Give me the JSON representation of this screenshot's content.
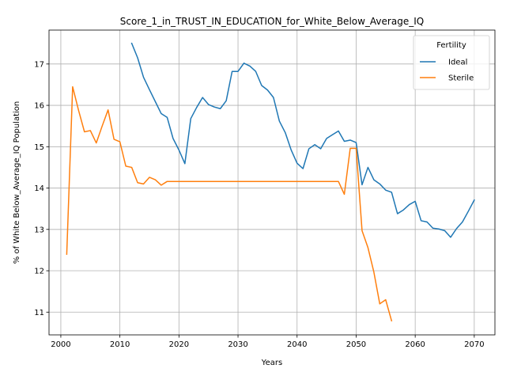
{
  "chart_data": {
    "type": "line",
    "title": "Score_1_in_TRUST_IN_EDUCATION_for_White_Below_Average_IQ",
    "xlabel": "Years",
    "ylabel": "% of White Below_Average_IQ Population",
    "xlim": [
      1998,
      2073.5
    ],
    "ylim": [
      10.45,
      17.82
    ],
    "xticks": [
      2000,
      2010,
      2020,
      2030,
      2040,
      2050,
      2060,
      2070
    ],
    "xtick_labels": [
      "2000",
      "2010",
      "2020",
      "2030",
      "2040",
      "2050",
      "2060",
      "2070"
    ],
    "yticks": [
      11,
      12,
      13,
      14,
      15,
      16,
      17
    ],
    "ytick_labels": [
      "11",
      "12",
      "13",
      "14",
      "15",
      "16",
      "17"
    ],
    "grid": true,
    "legend": {
      "title": "Fertility",
      "placement": "top-right"
    },
    "series": [
      {
        "name": "Ideal",
        "color": "#1f77b4",
        "x": [
          2012,
          2013,
          2014,
          2015,
          2016,
          2017,
          2018,
          2019,
          2020,
          2021,
          2022,
          2023,
          2024,
          2025,
          2026,
          2027,
          2028,
          2029,
          2030,
          2031,
          2032,
          2033,
          2034,
          2035,
          2036,
          2037,
          2038,
          2039,
          2040,
          2041,
          2042,
          2043,
          2044,
          2045,
          2046,
          2047,
          2048,
          2049,
          2050,
          2051,
          2052,
          2053,
          2054,
          2055,
          2056,
          2057,
          2058,
          2059,
          2060,
          2061,
          2062,
          2063,
          2064,
          2065,
          2066,
          2067,
          2068,
          2069,
          2070
        ],
        "values": [
          17.5,
          17.15,
          16.68,
          16.38,
          16.09,
          15.8,
          15.71,
          15.2,
          14.92,
          14.59,
          15.68,
          15.95,
          16.19,
          16.02,
          15.96,
          15.92,
          16.11,
          16.82,
          16.82,
          17.02,
          16.95,
          16.82,
          16.48,
          16.37,
          16.19,
          15.62,
          15.34,
          14.92,
          14.6,
          14.47,
          14.95,
          15.05,
          14.95,
          15.2,
          15.29,
          15.38,
          15.13,
          15.16,
          15.1,
          14.08,
          14.5,
          14.2,
          14.1,
          13.95,
          13.9,
          13.38,
          13.47,
          13.6,
          13.68,
          13.21,
          13.18,
          13.03,
          13.01,
          12.97,
          12.81,
          13.02,
          13.18,
          13.44,
          13.71
        ]
      },
      {
        "name": "Sterile",
        "color": "#ff7f0e",
        "x": [
          2001,
          2002,
          2003,
          2004,
          2005,
          2006,
          2007,
          2008,
          2009,
          2010,
          2011,
          2012,
          2013,
          2014,
          2015,
          2016,
          2017,
          2018,
          2019,
          2020,
          2021,
          2022,
          2023,
          2024,
          2025,
          2026,
          2027,
          2028,
          2029,
          2030,
          2031,
          2032,
          2033,
          2034,
          2035,
          2036,
          2037,
          2038,
          2039,
          2040,
          2041,
          2042,
          2043,
          2044,
          2045,
          2046,
          2047,
          2048,
          2049,
          2050,
          2051,
          2052,
          2053,
          2054,
          2055,
          2056
        ],
        "values": [
          12.4,
          16.45,
          15.88,
          15.36,
          15.39,
          15.09,
          15.5,
          15.89,
          15.18,
          15.12,
          14.53,
          14.5,
          14.13,
          14.1,
          14.26,
          14.2,
          14.07,
          14.16,
          14.16,
          14.16,
          14.16,
          14.16,
          14.16,
          14.16,
          14.16,
          14.16,
          14.16,
          14.16,
          14.16,
          14.16,
          14.16,
          14.16,
          14.16,
          14.16,
          14.16,
          14.16,
          14.16,
          14.16,
          14.16,
          14.16,
          14.16,
          14.16,
          14.16,
          14.16,
          14.16,
          14.16,
          14.16,
          13.85,
          14.96,
          14.96,
          12.97,
          12.56,
          11.97,
          11.2,
          11.3,
          10.79
        ]
      }
    ]
  }
}
